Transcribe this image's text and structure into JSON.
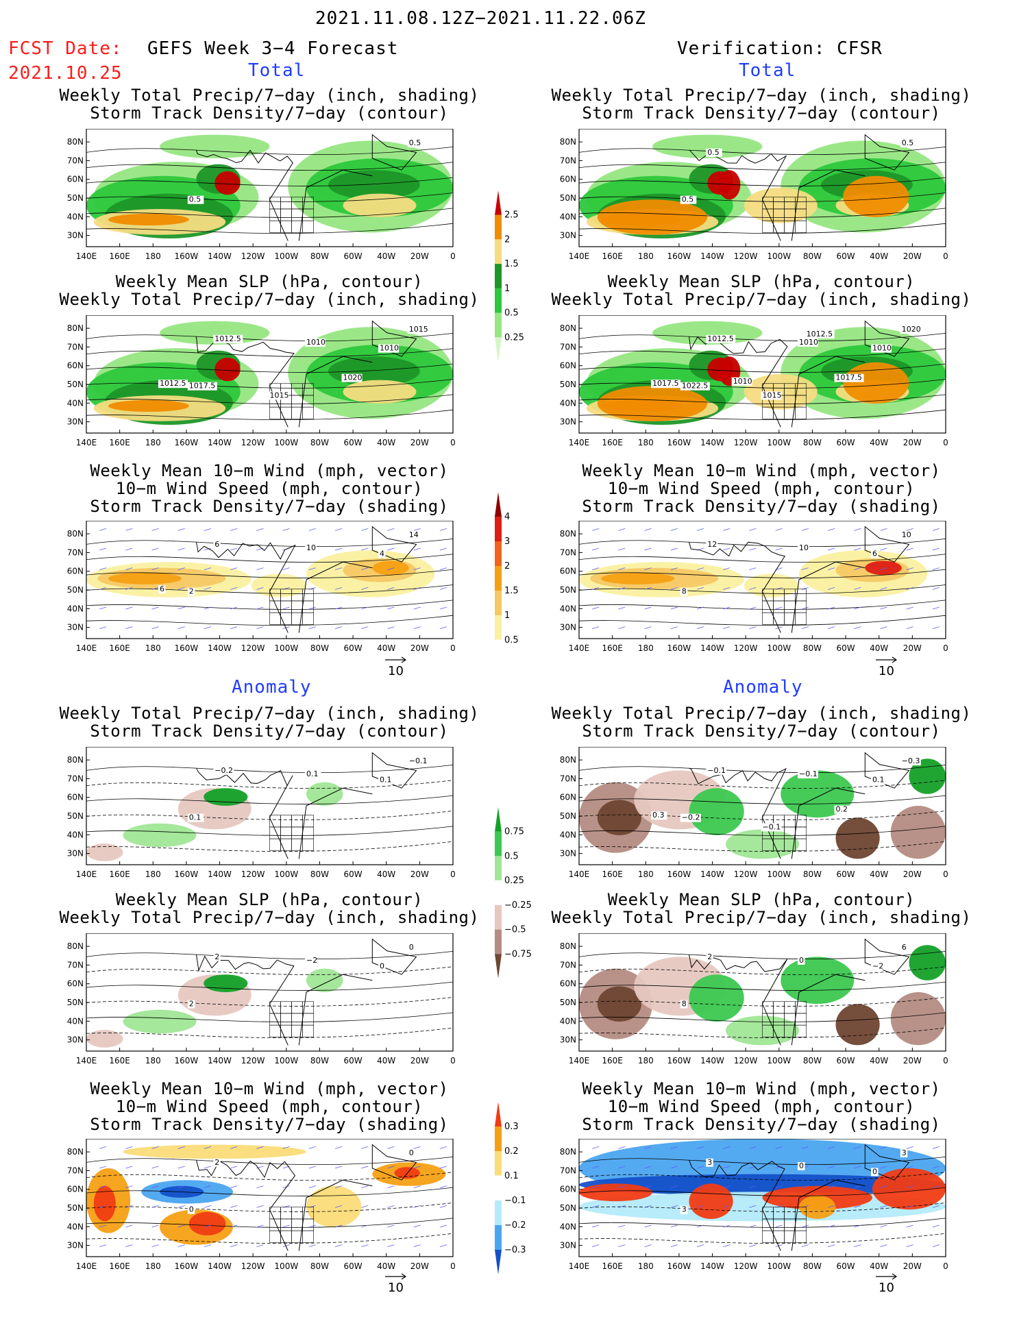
{
  "header": {
    "date_range": "2021.11.08.12Z−2021.11.22.06Z",
    "fcst_label": "FCST Date:",
    "fcst_date": "2021.10.25",
    "left_title": "GEFS Week 3−4 Forecast",
    "right_title": "Verification: CFSR"
  },
  "sections": {
    "total": "Total",
    "anomaly": "Anomaly"
  },
  "axes": {
    "lats": [
      "80N",
      "70N",
      "60N",
      "50N",
      "40N",
      "30N"
    ],
    "lons": [
      "140E",
      "160E",
      "180",
      "160W",
      "140W",
      "120W",
      "100W",
      "80W",
      "60W",
      "40W",
      "20W",
      "0"
    ]
  },
  "panel_titles": {
    "precip_storm": [
      "Weekly Total Precip/7−day (inch, shading)",
      "Storm Track Density/7−day (contour)"
    ],
    "slp_precip": [
      "Weekly Mean SLP (hPa, contour)",
      "Weekly Total Precip/7−day (inch, shading)"
    ],
    "wind_storm": [
      "Weekly Mean 10−m Wind (mph, vector)",
      "10−m Wind Speed (mph, contour)",
      "Storm Track Density/7−day (shading)"
    ]
  },
  "vector_ref": "10",
  "colorbars": {
    "total_precip": {
      "labels": [
        "2.5",
        "2",
        "1.5",
        "1",
        "0.5",
        "0.25"
      ],
      "colors": [
        "#c80000",
        "#f08c00",
        "#f5dc82",
        "#1e9628",
        "#2dc83c",
        "#96e682",
        "#d7f5c8"
      ]
    },
    "total_storm": {
      "labels": [
        "4",
        "3",
        "2",
        "1.5",
        "1",
        "0.5"
      ],
      "colors": [
        "#8c0000",
        "#dc1e14",
        "#f0641e",
        "#f5a014",
        "#f5c864",
        "#faf0a0",
        "#ffffff"
      ]
    },
    "anom_precip": {
      "labels": [
        "0.75",
        "0.5",
        "0.25",
        "−0.25",
        "−0.5",
        "−0.75"
      ],
      "colors": [
        "#14a028",
        "#3cc850",
        "#a0e696",
        "#ffffff",
        "#e6c8c0",
        "#b48c82",
        "#6e4632"
      ]
    },
    "anom_storm": {
      "labels": [
        "0.3",
        "0.2",
        "0.1",
        "−0.1",
        "−0.2",
        "−0.3"
      ],
      "colors": [
        "#f03c14",
        "#f5a014",
        "#fadc78",
        "#ffffff",
        "#b4ebfa",
        "#4ba5f0",
        "#1450c8"
      ]
    }
  },
  "contour_labels": {
    "f_precip_total": [
      "0.5",
      "0.5"
    ],
    "v_precip_total": [
      "0.5",
      "0.5",
      "0.5"
    ],
    "f_slp_total": [
      "1017.5",
      "1015",
      "1012.5",
      "1010",
      "1010",
      "1012.5",
      "1015",
      "1020"
    ],
    "v_slp_total": [
      "1022.5",
      "1020",
      "1012.5",
      "1010",
      "1010",
      "1017.5",
      "1015",
      "1017.5",
      "1012.5",
      "1010"
    ],
    "f_wind_total": [
      "2",
      "14",
      "6",
      "10",
      "4",
      "6"
    ],
    "v_wind_total": [
      "8",
      "10",
      "12",
      "10",
      "6"
    ],
    "f_precip_anom": [
      "0.1",
      "−0.1",
      "−0.2",
      "0.1",
      "0.1"
    ],
    "v_precip_anom": [
      "−0.2",
      "−0.3",
      "−0.1",
      "−0.1",
      "0.1",
      "0.3",
      "−0.1",
      "0.2"
    ],
    "f_slp_anom": [
      "2",
      "0",
      "2",
      "−2",
      "0"
    ],
    "v_slp_anom": [
      "8",
      "6",
      "2",
      "0",
      "−2"
    ],
    "f_wind_anom": [
      "0",
      "0",
      "2"
    ],
    "v_wind_anom": [
      "3",
      "3",
      "3",
      "0",
      "0"
    ]
  }
}
